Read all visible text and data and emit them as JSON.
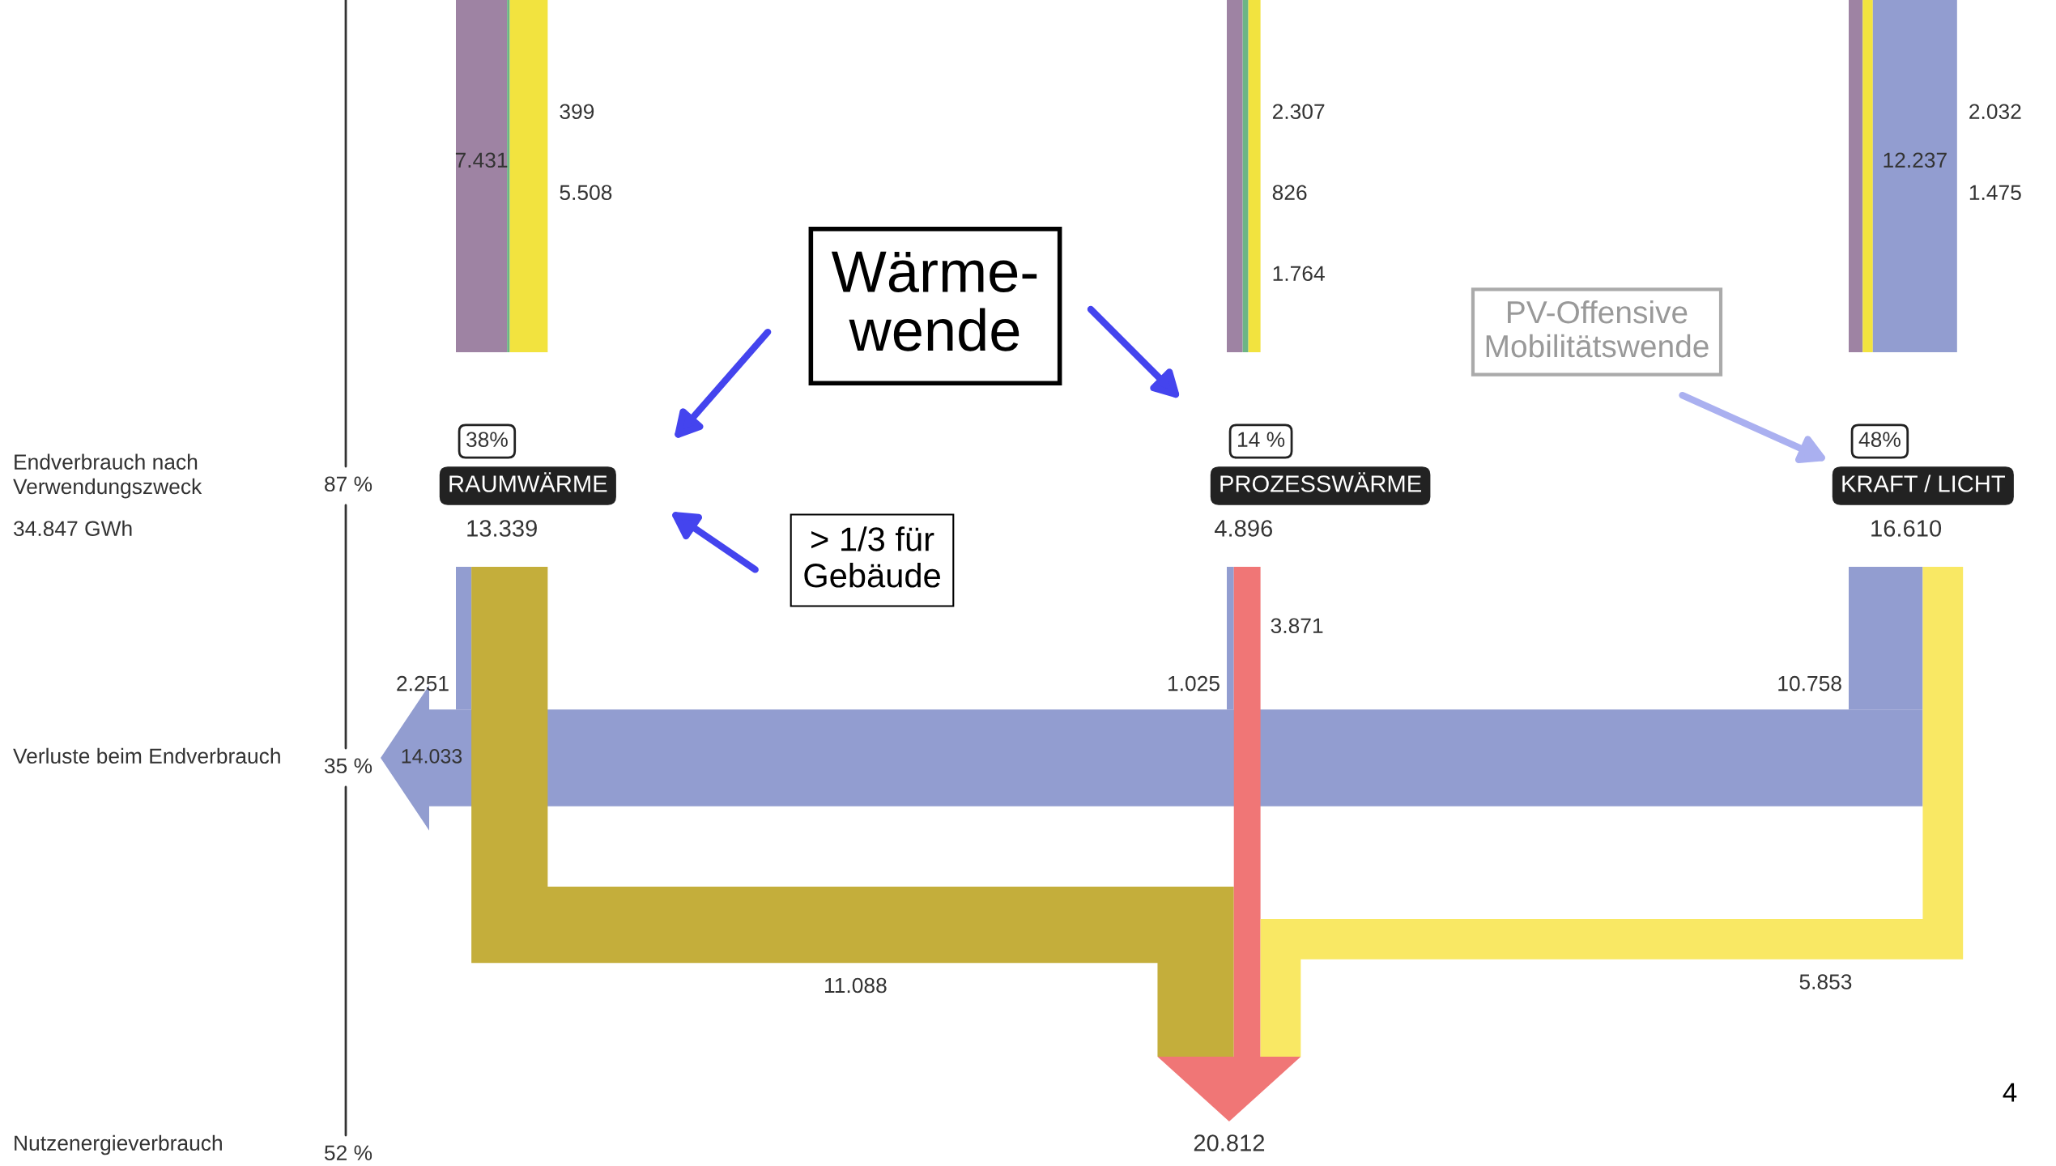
{
  "chart_data": {
    "type": "other",
    "categories": [
      "RAUMWÄRME",
      "PROZESSWÄRME",
      "KRAFT / LICHT"
    ],
    "values": [
      13339,
      4896,
      16610
    ],
    "value_labels": [
      "13.339",
      "4.896",
      "16.610"
    ],
    "y_categories": [
      "Endverbrauch nach\nVerwendungszweck",
      "Verluste beim Endverbrauch",
      "Nutzenergieverbrauch"
    ],
    "series": [
      {
        "color": "#9e83a3",
        "values": [
          7431,
          2307,
          2032
        ],
        "value_labels": [
          "7.431",
          "2.307",
          "2.032"
        ]
      },
      {
        "color": "#6db585",
        "values": [
          399,
          826,
          null
        ],
        "value_labels": [
          "399",
          "826",
          null
        ]
      },
      {
        "color": "#f2e33f",
        "values": [
          5508,
          1764,
          1475
        ],
        "value_labels": [
          "5.508",
          "1.764",
          "1.475"
        ]
      },
      {
        "color": "#929dd0",
        "values": [
          null,
          null,
          12237
        ],
        "value_labels": [
          null,
          null,
          "12.237"
        ]
      },
      {
        "color": "#929dd0",
        "values": [
          2251,
          1025,
          10758
        ],
        "value_labels": [
          "2.251",
          "1.025",
          "10.758"
        ]
      },
      {
        "colors": [
          "#c4ae3b",
          "#f07676",
          "#f9e864"
        ],
        "values": [
          11088,
          3871,
          5853
        ],
        "value_labels": [
          "11.088",
          "3.871",
          "5.853"
        ]
      }
    ],
    "annotations": [
      "Wärme-\nwende",
      "> 1/3 für\nGebäude",
      "PV-Offensive\nMobilitätswende",
      "4",
      "38%",
      "14 %",
      "48%",
      "34.847 GWh",
      "87 %",
      "35 %",
      "52 %",
      "14.033",
      "20.812"
    ]
  }
}
